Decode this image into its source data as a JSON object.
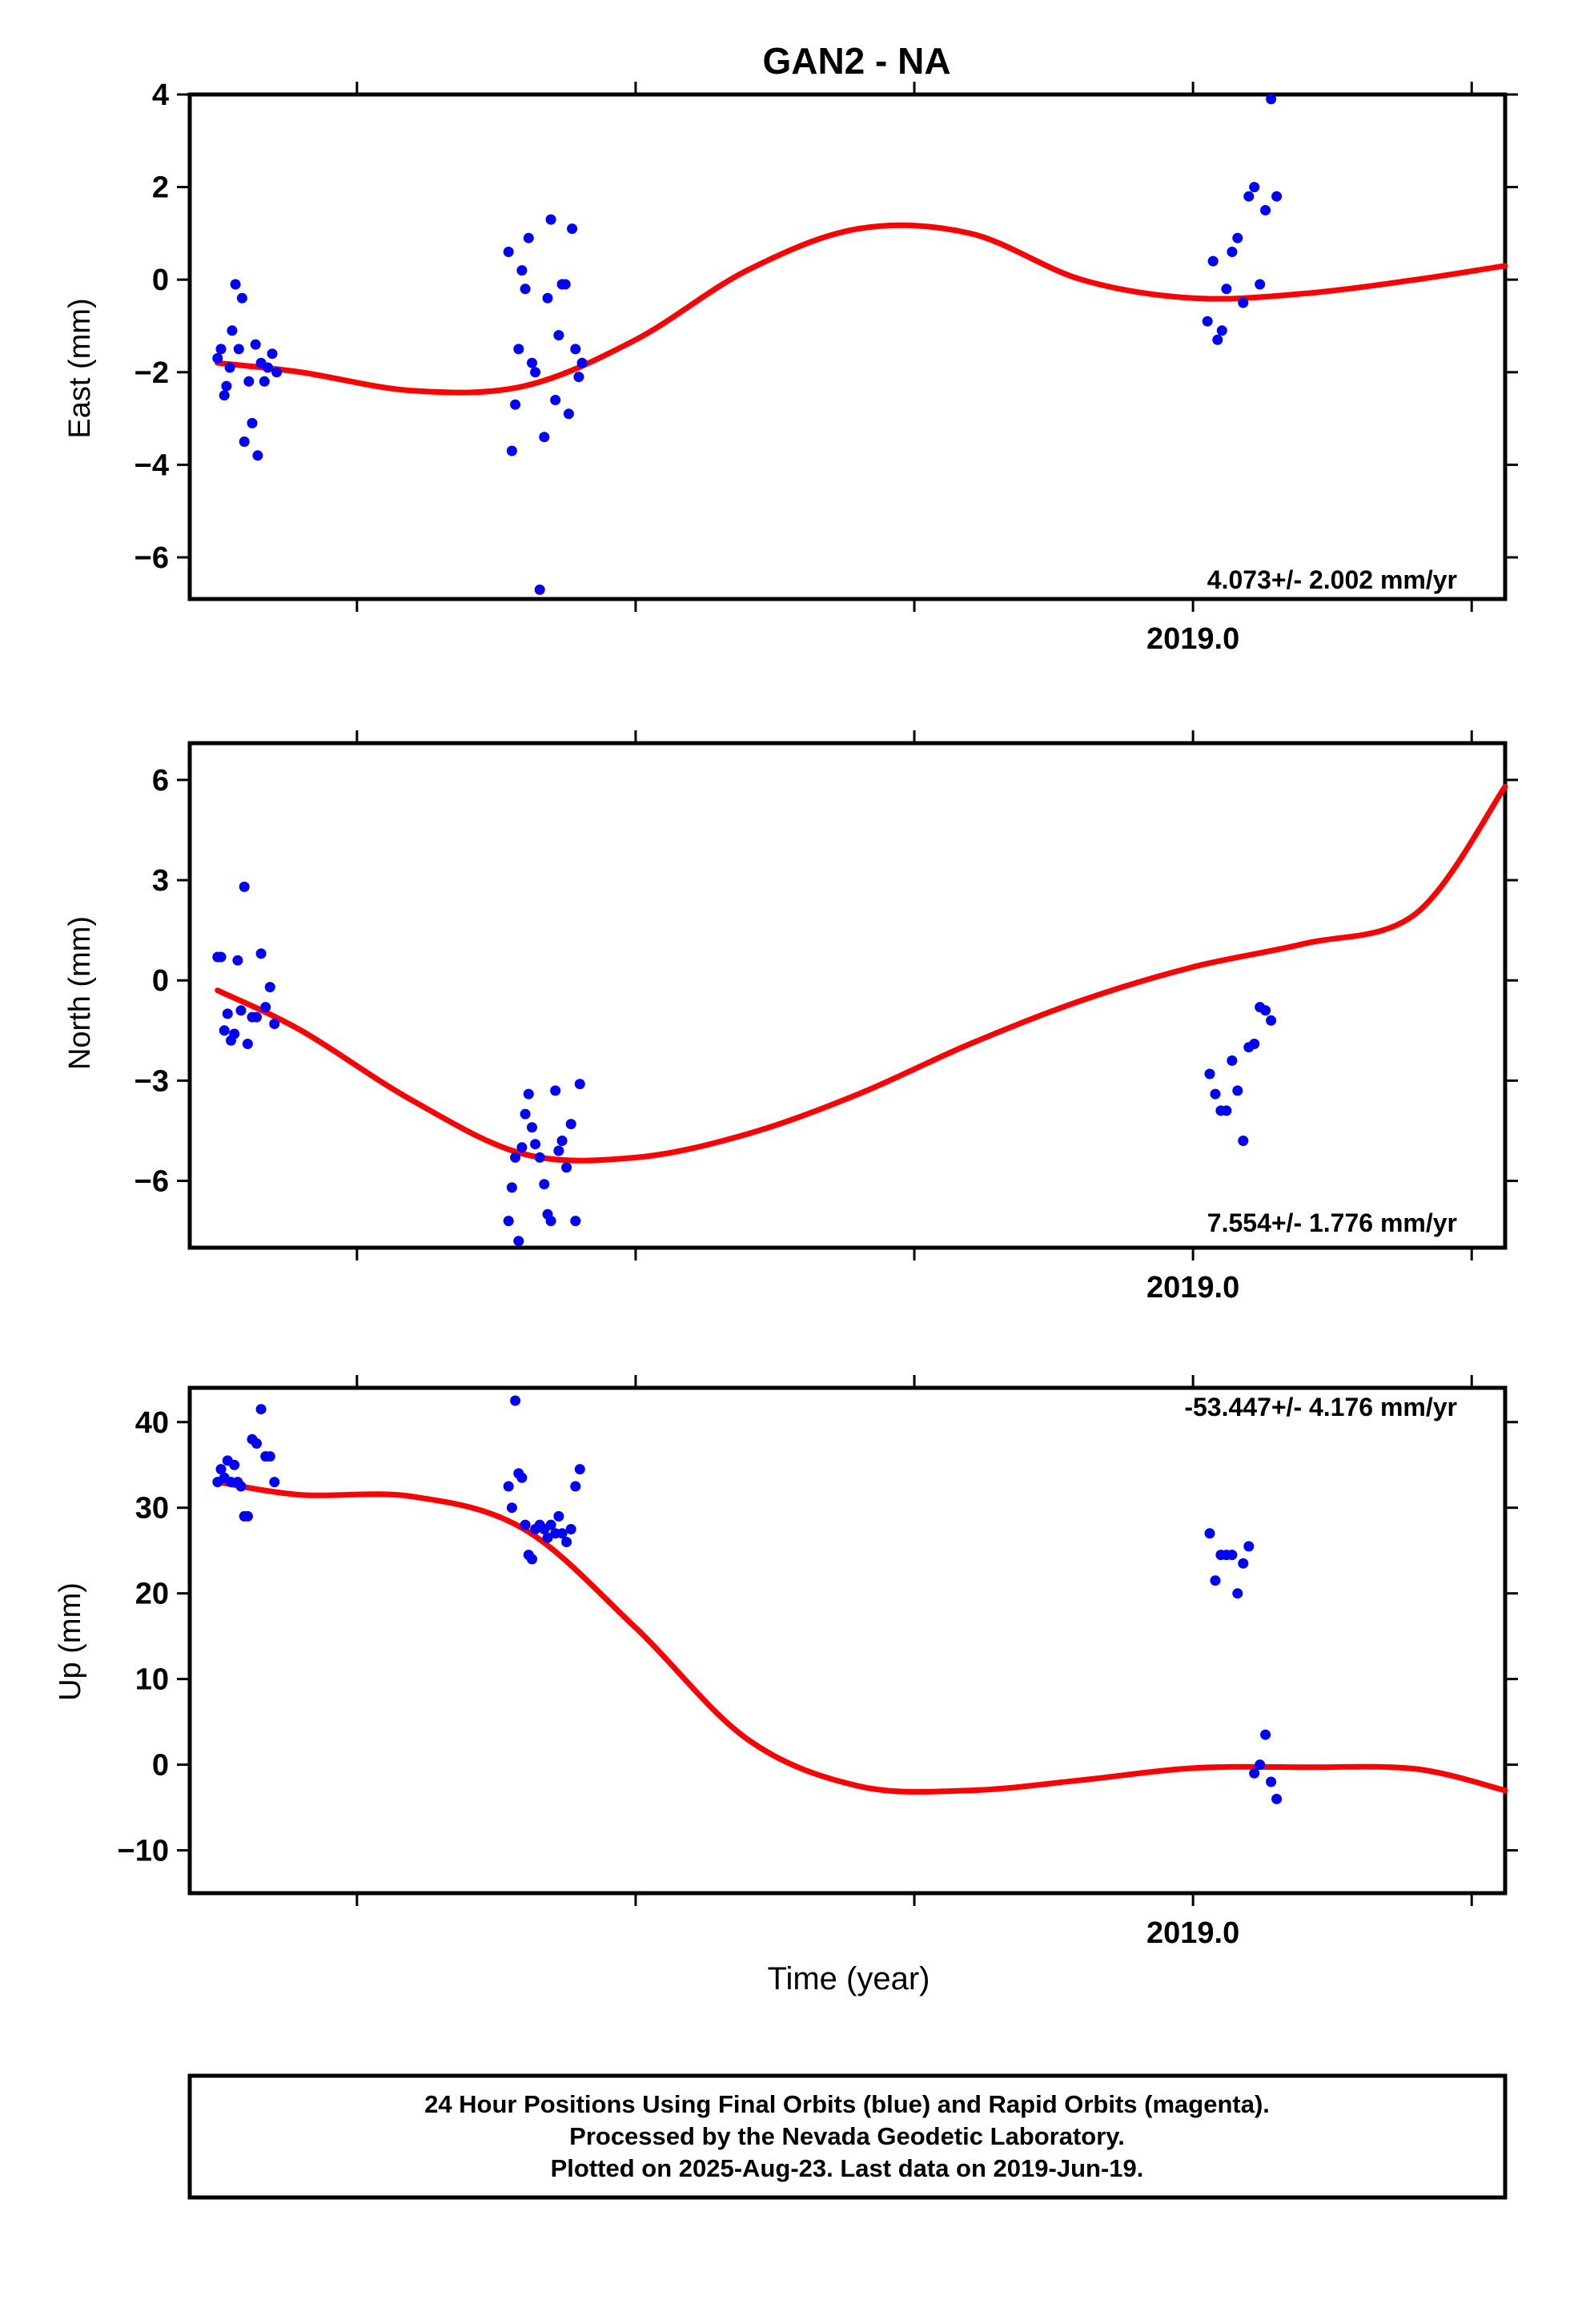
{
  "title": "GAN2 - NA",
  "xlabel": "Time (year)",
  "footer": {
    "line1": "24 Hour Positions Using Final Orbits (blue) and Rapid Orbits (magenta).",
    "line2": "Processed by the Nevada Geodetic Laboratory.",
    "line3": "Plotted on 2025-Aug-23. Last data on 2019-Jun-19."
  },
  "colors": {
    "points": "#0000ff",
    "fit": "#ff0000",
    "frame": "#000000"
  },
  "chart_data": [
    {
      "type": "scatter",
      "ylabel": "East (mm)",
      "xlim": [
        2018.1,
        2019.28
      ],
      "ylim": [
        -6.9,
        4.0
      ],
      "yticks": [
        4,
        2,
        0,
        -2,
        -4,
        -6
      ],
      "ytick_labels": [
        "4",
        "2",
        "0",
        "−2",
        "−4",
        "−6"
      ],
      "xtick_labels": [
        {
          "x": 2019.0,
          "label": "2019.0"
        }
      ],
      "rate_label": "4.073+/- 2.002 mm/yr",
      "grid": false,
      "series": [
        {
          "kind": "points",
          "x": [
            2018.125,
            2018.128,
            2018.131,
            2018.133,
            2018.136,
            2018.138,
            2018.141,
            2018.144,
            2018.147,
            2018.149,
            2018.153,
            2018.156,
            2018.159,
            2018.161,
            2018.164,
            2018.167,
            2018.17,
            2018.174,
            2018.178,
            2018.386,
            2018.389,
            2018.392,
            2018.395,
            2018.398,
            2018.401,
            2018.404,
            2018.407,
            2018.41,
            2018.414,
            2018.418,
            2018.421,
            2018.424,
            2018.428,
            2018.431,
            2018.434,
            2018.437,
            2018.44,
            2018.443,
            2018.446,
            2018.449,
            2018.452,
            2019.013,
            2019.018,
            2019.022,
            2019.026,
            2019.03,
            2019.035,
            2019.04,
            2019.045,
            2019.05,
            2019.055,
            2019.06,
            2019.065,
            2019.07,
            2019.075
          ],
          "y": [
            -1.7,
            -1.5,
            -2.5,
            -2.3,
            -1.9,
            -1.1,
            -0.1,
            -1.5,
            -0.4,
            -3.5,
            -2.2,
            -3.1,
            -1.4,
            -3.8,
            -1.8,
            -2.2,
            -1.9,
            -1.6,
            -2.0,
            0.6,
            -3.7,
            -2.7,
            -1.5,
            0.2,
            -0.2,
            0.9,
            -1.8,
            -2.0,
            -6.7,
            -3.4,
            -0.4,
            1.3,
            -2.6,
            -1.2,
            -0.1,
            -0.1,
            -2.9,
            1.1,
            -1.5,
            -2.1,
            -1.8,
            -0.9,
            0.4,
            -1.3,
            -1.1,
            -0.2,
            0.6,
            0.9,
            -0.5,
            1.8,
            2.0,
            -0.1,
            1.5,
            3.9,
            1.8
          ]
        },
        {
          "kind": "fit",
          "x": [
            2018.125,
            2018.2,
            2018.3,
            2018.4,
            2018.5,
            2018.6,
            2018.7,
            2018.8,
            2018.9,
            2019.0,
            2019.1,
            2019.2,
            2019.28
          ],
          "y": [
            -1.8,
            -2.0,
            -2.4,
            -2.3,
            -1.3,
            0.2,
            1.1,
            1.0,
            0.0,
            -0.4,
            -0.3,
            0.0,
            0.3
          ]
        }
      ]
    },
    {
      "type": "scatter",
      "ylabel": "North (mm)",
      "xlim": [
        2018.1,
        2019.28
      ],
      "ylim": [
        -8.0,
        7.1
      ],
      "yticks": [
        6,
        3,
        0,
        -3,
        -6
      ],
      "ytick_labels": [
        "6",
        "3",
        "0",
        "−3",
        "−6"
      ],
      "xtick_labels": [
        {
          "x": 2019.0,
          "label": "2019.0"
        }
      ],
      "rate_label": "7.554+/- 1.776 mm/yr",
      "grid": false,
      "series": [
        {
          "kind": "points",
          "x": [
            2018.125,
            2018.128,
            2018.131,
            2018.134,
            2018.137,
            2018.14,
            2018.143,
            2018.146,
            2018.149,
            2018.152,
            2018.156,
            2018.16,
            2018.164,
            2018.168,
            2018.172,
            2018.176,
            2018.386,
            2018.389,
            2018.392,
            2018.395,
            2018.398,
            2018.401,
            2018.404,
            2018.407,
            2018.41,
            2018.414,
            2018.418,
            2018.421,
            2018.424,
            2018.428,
            2018.431,
            2018.434,
            2018.438,
            2018.442,
            2018.446,
            2018.45,
            2019.015,
            2019.02,
            2019.025,
            2019.03,
            2019.035,
            2019.04,
            2019.045,
            2019.05,
            2019.055,
            2019.06,
            2019.065,
            2019.07
          ],
          "y": [
            0.7,
            0.7,
            -1.5,
            -1.0,
            -1.8,
            -1.6,
            0.6,
            -0.9,
            2.8,
            -1.9,
            -1.1,
            -1.1,
            0.8,
            -0.8,
            -0.2,
            -1.3,
            -7.2,
            -6.2,
            -5.3,
            -7.8,
            -5.0,
            -4.0,
            -3.4,
            -4.4,
            -4.9,
            -5.3,
            -6.1,
            -7.0,
            -7.2,
            -3.3,
            -5.1,
            -4.8,
            -5.6,
            -4.3,
            -7.2,
            -3.1,
            -2.8,
            -3.4,
            -3.9,
            -3.9,
            -2.4,
            -3.3,
            -4.8,
            -2.0,
            -1.9,
            -0.8,
            -0.9,
            -1.2
          ]
        },
        {
          "kind": "fit",
          "x": [
            2018.125,
            2018.2,
            2018.3,
            2018.4,
            2018.5,
            2018.6,
            2018.7,
            2018.8,
            2018.9,
            2019.0,
            2019.1,
            2019.2,
            2019.28
          ],
          "y": [
            -0.3,
            -1.5,
            -3.6,
            -5.2,
            -5.3,
            -4.6,
            -3.4,
            -1.9,
            -0.6,
            0.4,
            1.1,
            2.0,
            5.8
          ]
        }
      ]
    },
    {
      "type": "scatter",
      "ylabel": "Up (mm)",
      "xlim": [
        2018.1,
        2019.28
      ],
      "ylim": [
        -15.0,
        44.0
      ],
      "yticks": [
        40,
        30,
        20,
        10,
        0,
        -10
      ],
      "ytick_labels": [
        "40",
        "30",
        "20",
        "10",
        "0",
        "−10"
      ],
      "xtick_labels": [
        {
          "x": 2019.0,
          "label": "2019.0"
        }
      ],
      "rate_label": "-53.447+/- 4.176 mm/yr",
      "grid": false,
      "series": [
        {
          "kind": "points",
          "x": [
            2018.125,
            2018.128,
            2018.131,
            2018.134,
            2018.137,
            2018.14,
            2018.143,
            2018.146,
            2018.149,
            2018.152,
            2018.156,
            2018.16,
            2018.164,
            2018.168,
            2018.172,
            2018.176,
            2018.386,
            2018.389,
            2018.392,
            2018.395,
            2018.398,
            2018.401,
            2018.404,
            2018.407,
            2018.41,
            2018.414,
            2018.418,
            2018.421,
            2018.424,
            2018.428,
            2018.431,
            2018.434,
            2018.438,
            2018.442,
            2018.446,
            2018.45,
            2019.015,
            2019.02,
            2019.025,
            2019.03,
            2019.035,
            2019.04,
            2019.045,
            2019.05,
            2019.055,
            2019.06,
            2019.065,
            2019.07,
            2019.075
          ],
          "y": [
            33,
            34.5,
            33.5,
            35.5,
            33,
            35,
            33,
            32.5,
            29,
            29,
            38,
            37.5,
            41.5,
            36,
            36,
            33,
            32.5,
            30,
            42.5,
            34,
            33.5,
            28,
            24.5,
            24,
            27.5,
            28,
            27.5,
            26.5,
            28,
            27,
            29,
            27,
            26,
            27.5,
            32.5,
            34.5,
            27,
            21.5,
            24.5,
            24.5,
            24.5,
            20,
            23.5,
            25.5,
            -1,
            0,
            3.5,
            -2,
            -4
          ]
        },
        {
          "kind": "fit",
          "x": [
            2018.125,
            2018.2,
            2018.3,
            2018.4,
            2018.5,
            2018.6,
            2018.7,
            2018.8,
            2018.9,
            2019.0,
            2019.1,
            2019.2,
            2019.28
          ],
          "y": [
            33.0,
            31.5,
            31.3,
            27.5,
            16.0,
            3.0,
            -2.5,
            -3.0,
            -1.8,
            -0.4,
            -0.3,
            -0.5,
            -3.0
          ]
        }
      ]
    }
  ]
}
